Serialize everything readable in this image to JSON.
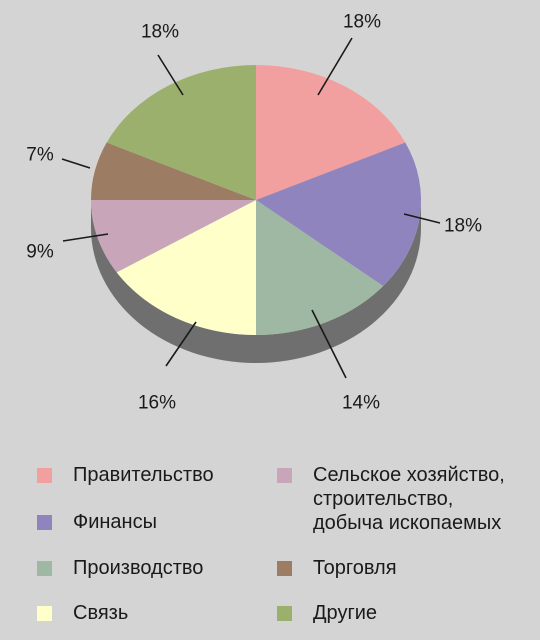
{
  "chart_data": {
    "type": "pie",
    "slices": [
      {
        "label": "Правительство",
        "value": 18,
        "value_label": "18%",
        "color": "#f29fa0"
      },
      {
        "label": "Финансы",
        "value": 18,
        "value_label": "18%",
        "color": "#9084bf"
      },
      {
        "label": "Производство",
        "value": 14,
        "value_label": "14%",
        "color": "#9eb8a3"
      },
      {
        "label": "Связь",
        "value": 16,
        "value_label": "16%",
        "color": "#ffffca"
      },
      {
        "label": "Сельское хозяйство,\nстроительство,\nдобыча ископаемых",
        "value": 9,
        "value_label": "9%",
        "color": "#c8a5b8"
      },
      {
        "label": "Торговля",
        "value": 7,
        "value_label": "7%",
        "color": "#9c7c63"
      },
      {
        "label": "Другие",
        "value": 18,
        "value_label": "18%",
        "color": "#9cb06e"
      }
    ],
    "legend_placement": "bottom",
    "style": "3d-pie"
  }
}
